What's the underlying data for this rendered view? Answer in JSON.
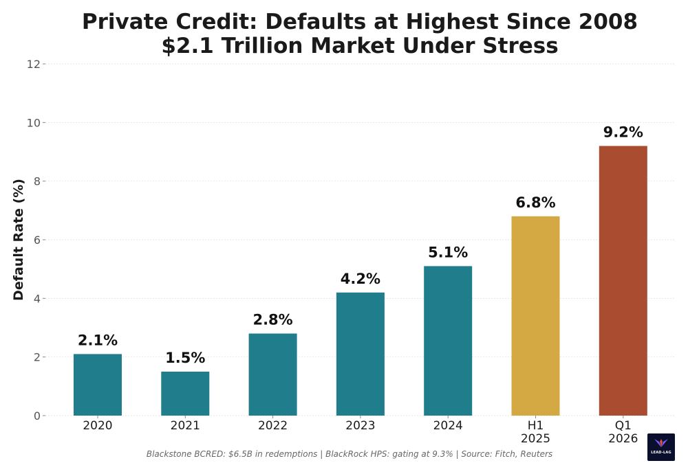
{
  "chart_data": {
    "type": "bar",
    "title": "Private Credit: Defaults at Highest Since 2008",
    "subtitle": "$2.1 Trillion Market Under Stress",
    "xlabel": "",
    "ylabel": "Default Rate (%)",
    "ylim": [
      0,
      12
    ],
    "yticks": [
      0,
      2,
      4,
      6,
      8,
      10,
      12
    ],
    "grid": true,
    "categories": [
      [
        "2020"
      ],
      [
        "2021"
      ],
      [
        "2022"
      ],
      [
        "2023"
      ],
      [
        "2024"
      ],
      [
        "H1",
        "2025"
      ],
      [
        "Q1",
        "2026"
      ]
    ],
    "values": [
      2.1,
      1.5,
      2.8,
      4.2,
      5.1,
      6.8,
      9.2
    ],
    "data_labels": [
      "2.1%",
      "1.5%",
      "2.8%",
      "4.2%",
      "5.1%",
      "6.8%",
      "9.2%"
    ],
    "bar_colors": [
      "#1f7d8c",
      "#1f7d8c",
      "#1f7d8c",
      "#1f7d8c",
      "#1f7d8c",
      "#d4a843",
      "#a94c2f"
    ]
  },
  "footer": {
    "note": "Blackstone BCRED: $6.5B in redemptions  |  BlackRock HPS: gating at 9.3%  |  Source: Fitch, Reuters"
  },
  "logo": {
    "text": "LEAD-LAG",
    "icon": "winged-logo-icon"
  }
}
